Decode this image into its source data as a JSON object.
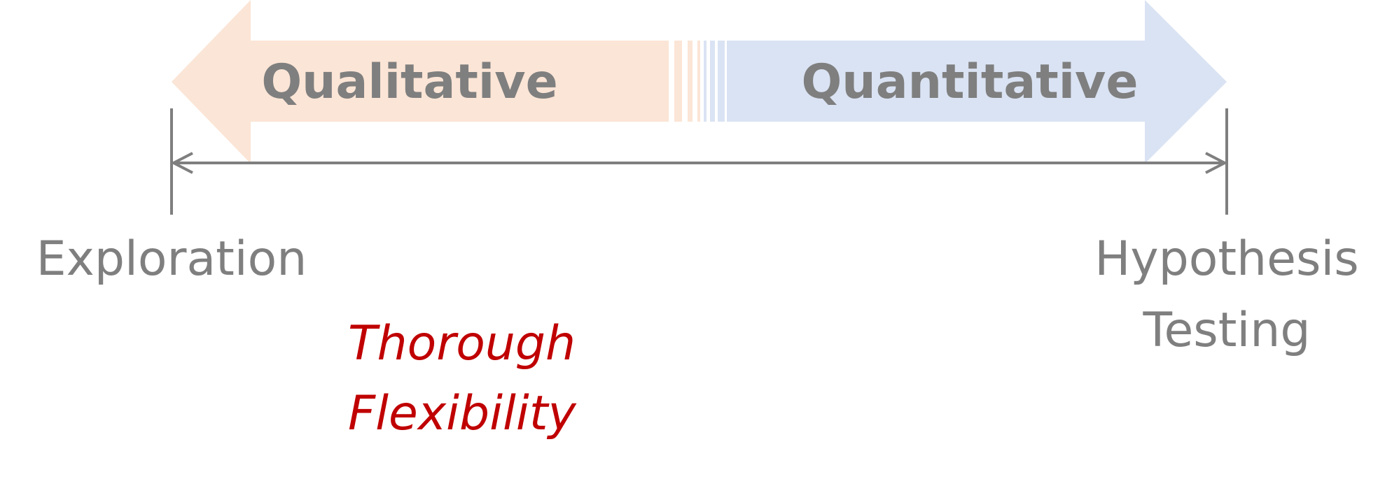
{
  "arrows": {
    "left_label": "Qualitative",
    "right_label": "Quantitative",
    "left_color": "#fbe5d6",
    "right_color": "#dae3f3"
  },
  "scale": {
    "start_label": "Exploration",
    "end_label_line1": "Hypothesis",
    "end_label_line2": "Testing",
    "line_color": "#7f7f7f"
  },
  "note": {
    "line1": "Thorough",
    "line2": "Flexibility",
    "color": "#c00000"
  }
}
